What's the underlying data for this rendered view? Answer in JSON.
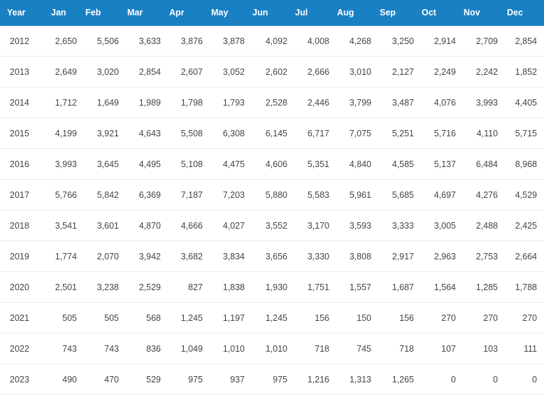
{
  "columns": [
    "Year",
    "Jan",
    "Feb",
    "Mar",
    "Apr",
    "May",
    "Jun",
    "Jul",
    "Aug",
    "Sep",
    "Oct",
    "Nov",
    "Dec"
  ],
  "rows": [
    [
      "2012",
      "2,650",
      "5,506",
      "3,633",
      "3,876",
      "3,878",
      "4,092",
      "4,008",
      "4,268",
      "3,250",
      "2,914",
      "2,709",
      "2,854"
    ],
    [
      "2013",
      "2,649",
      "3,020",
      "2,854",
      "2,607",
      "3,052",
      "2,602",
      "2,666",
      "3,010",
      "2,127",
      "2,249",
      "2,242",
      "1,852"
    ],
    [
      "2014",
      "1,712",
      "1,649",
      "1,989",
      "1,798",
      "1,793",
      "2,528",
      "2,446",
      "3,799",
      "3,487",
      "4,076",
      "3,993",
      "4,405"
    ],
    [
      "2015",
      "4,199",
      "3,921",
      "4,643",
      "5,508",
      "6,308",
      "6,145",
      "6,717",
      "7,075",
      "5,251",
      "5,716",
      "4,110",
      "5,715"
    ],
    [
      "2016",
      "3,993",
      "3,645",
      "4,495",
      "5,108",
      "4,475",
      "4,606",
      "5,351",
      "4,840",
      "4,585",
      "5,137",
      "6,484",
      "8,968"
    ],
    [
      "2017",
      "5,766",
      "5,842",
      "6,369",
      "7,187",
      "7,203",
      "5,880",
      "5,583",
      "5,961",
      "5,685",
      "4,697",
      "4,276",
      "4,529"
    ],
    [
      "2018",
      "3,541",
      "3,601",
      "4,870",
      "4,666",
      "4,027",
      "3,552",
      "3,170",
      "3,593",
      "3,333",
      "3,005",
      "2,488",
      "2,425"
    ],
    [
      "2019",
      "1,774",
      "2,070",
      "3,942",
      "3,682",
      "3,834",
      "3,656",
      "3,330",
      "3,808",
      "2,917",
      "2,963",
      "2,753",
      "2,664"
    ],
    [
      "2020",
      "2,501",
      "3,238",
      "2,529",
      "827",
      "1,838",
      "1,930",
      "1,751",
      "1,557",
      "1,687",
      "1,564",
      "1,285",
      "1,788"
    ],
    [
      "2021",
      "505",
      "505",
      "568",
      "1,245",
      "1,197",
      "1,245",
      "156",
      "150",
      "156",
      "270",
      "270",
      "270"
    ],
    [
      "2022",
      "743",
      "743",
      "836",
      "1,049",
      "1,010",
      "1,010",
      "718",
      "745",
      "718",
      "107",
      "103",
      "111"
    ],
    [
      "2023",
      "490",
      "470",
      "529",
      "975",
      "937",
      "975",
      "1,216",
      "1,313",
      "1,265",
      "0",
      "0",
      "0"
    ]
  ],
  "colors": {
    "header_bg": "#1a80c4",
    "header_text": "#ffffff",
    "cell_text": "#444444",
    "row_border": "#ebebeb"
  }
}
